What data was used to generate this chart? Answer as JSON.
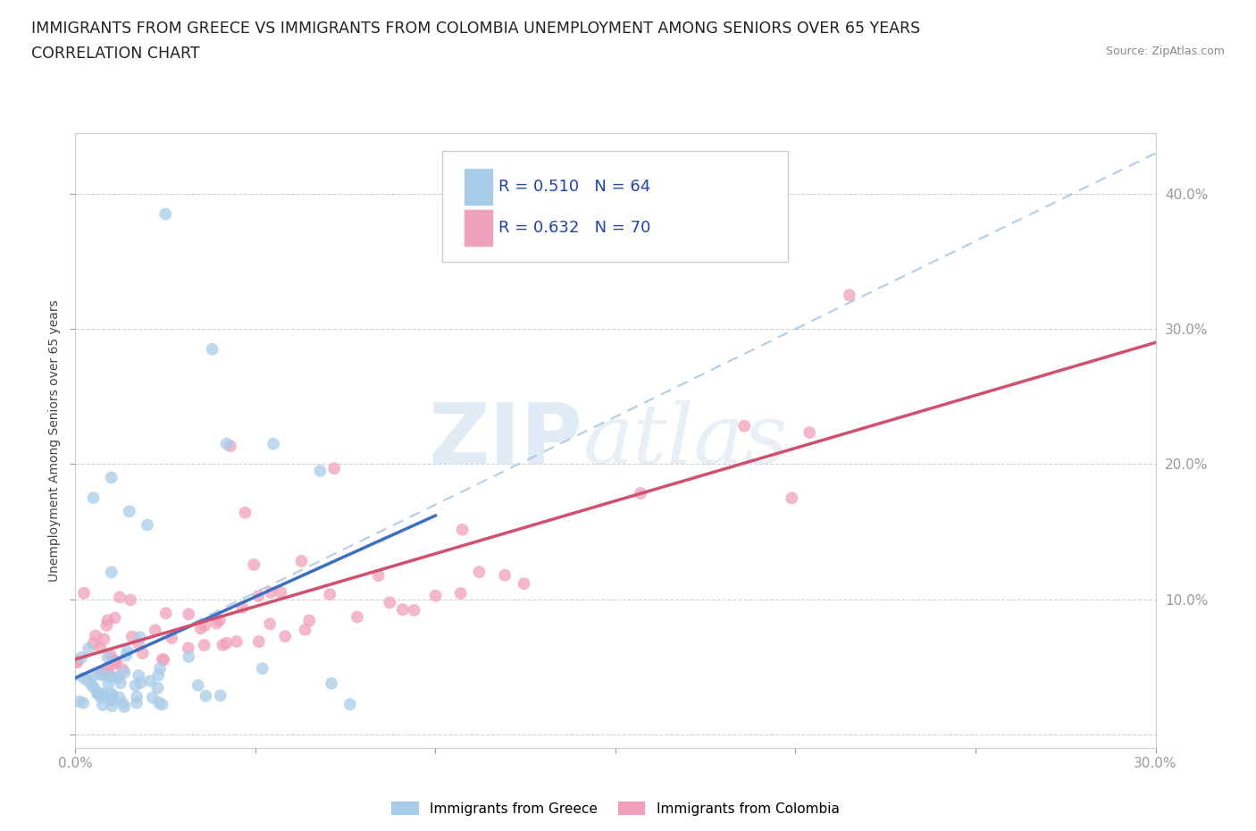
{
  "title_line1": "IMMIGRANTS FROM GREECE VS IMMIGRANTS FROM COLOMBIA UNEMPLOYMENT AMONG SENIORS OVER 65 YEARS",
  "title_line2": "CORRELATION CHART",
  "source_text": "Source: ZipAtlas.com",
  "ylabel": "Unemployment Among Seniors over 65 years",
  "xlim": [
    0.0,
    0.3
  ],
  "ylim": [
    -0.01,
    0.445
  ],
  "greece_color": "#a8cce8",
  "greece_line_color": "#3a6fc4",
  "colombia_color": "#f0a0b8",
  "colombia_line_color": "#d05070",
  "diag_color": "#a0c0e0",
  "greece_R": 0.51,
  "greece_N": 64,
  "colombia_R": 0.632,
  "colombia_N": 70,
  "legend_label_greece": "Immigrants from Greece",
  "legend_label_colombia": "Immigrants from Colombia",
  "watermark_zip": "ZIP",
  "watermark_atlas": "atlas",
  "background_color": "#ffffff",
  "grid_color": "#cccccc",
  "title_fontsize": 12.5,
  "axis_label_fontsize": 10,
  "tick_fontsize": 11,
  "ytick_color": "#4472c4",
  "xtick_color": "#333333"
}
